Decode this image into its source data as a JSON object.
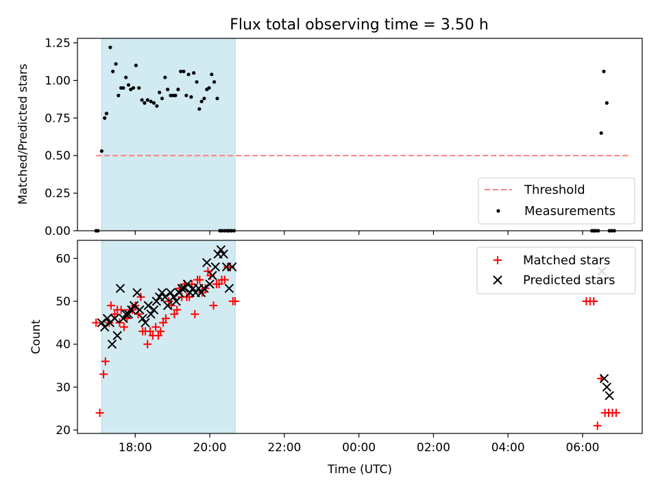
{
  "chart_data": {
    "title": "Flux total observing time = 3.50 h",
    "xlabel": "Time (UTC)",
    "x_tick_labels": [
      "18:00",
      "20:00",
      "22:00",
      "00:00",
      "02:00",
      "04:00",
      "06:00"
    ],
    "x_tick_hours": [
      18,
      20,
      22,
      24,
      26,
      28,
      30
    ],
    "xlim_hours": [
      16.45,
      31.6
    ],
    "shaded_interval_hours": [
      17.1,
      20.68
    ],
    "colors": {
      "shade": "#add8e6",
      "threshold": "#ff7f7f",
      "measurements": "#000000",
      "matched": "#ff0000",
      "predicted": "#000000"
    },
    "panels": [
      {
        "type": "scatter",
        "ylabel": "Matched/Predicted stars",
        "ylim": [
          0,
          1.28
        ],
        "yticks": [
          0,
          0.25,
          0.5,
          0.75,
          1.0,
          1.25
        ],
        "ytick_labels": [
          "0.00",
          "0.25",
          "0.50",
          "0.75",
          "1.00",
          "1.25"
        ],
        "legend": {
          "position": "lower-right",
          "entries": [
            "Threshold",
            "Measurements"
          ]
        },
        "threshold": {
          "name": "Threshold",
          "y": 0.5,
          "x_range_hours": [
            16.95,
            31.3
          ]
        },
        "measurements": {
          "name": "Measurements",
          "x": [
            16.95,
            17.0,
            17.1,
            17.18,
            17.23,
            17.33,
            17.4,
            17.48,
            17.55,
            17.62,
            17.68,
            17.75,
            17.82,
            17.88,
            17.95,
            18.02,
            18.1,
            18.18,
            18.25,
            18.33,
            18.42,
            18.5,
            18.58,
            18.65,
            18.72,
            18.8,
            18.87,
            18.95,
            19.02,
            19.08,
            19.15,
            19.22,
            19.3,
            19.37,
            19.43,
            19.5,
            19.57,
            19.65,
            19.72,
            19.78,
            19.85,
            19.92,
            19.98,
            20.05,
            20.12,
            20.2,
            20.27,
            20.33,
            20.4,
            20.47,
            20.52,
            20.58,
            20.65,
            30.25,
            30.3,
            30.35,
            30.42,
            30.5,
            30.57,
            30.65,
            30.72,
            30.78,
            30.85
          ],
          "y": [
            0.0,
            0.0,
            0.53,
            0.75,
            0.78,
            1.22,
            1.06,
            1.11,
            0.9,
            0.95,
            0.95,
            1.02,
            0.97,
            0.94,
            0.95,
            1.1,
            0.95,
            0.87,
            0.85,
            0.87,
            0.86,
            0.85,
            0.83,
            0.92,
            0.88,
            1.02,
            0.94,
            0.9,
            0.9,
            0.9,
            0.94,
            1.06,
            1.06,
            0.9,
            1.04,
            0.89,
            1.05,
            0.99,
            0.81,
            0.86,
            0.88,
            0.94,
            0.95,
            1.04,
            0.99,
            0.88,
            0.0,
            0.0,
            0.0,
            0.0,
            0.0,
            0.0,
            0.0,
            0.0,
            0.0,
            0.0,
            0.0,
            0.65,
            1.06,
            0.85,
            0.0,
            0.0,
            0.0
          ]
        }
      },
      {
        "type": "scatter",
        "ylabel": "Count",
        "ylim": [
          19.2,
          64.2
        ],
        "yticks": [
          20,
          30,
          40,
          50,
          60
        ],
        "ytick_labels": [
          "20",
          "30",
          "40",
          "50",
          "60"
        ],
        "legend": {
          "position": "top-right",
          "entries": [
            "Matched stars",
            "Predicted stars"
          ]
        },
        "matched": {
          "name": "Matched stars",
          "x": [
            16.95,
            17.05,
            17.15,
            17.2,
            17.3,
            17.35,
            17.45,
            17.52,
            17.58,
            17.62,
            17.7,
            17.78,
            17.85,
            17.92,
            18.0,
            18.08,
            18.15,
            18.2,
            18.27,
            18.33,
            18.4,
            18.47,
            18.55,
            18.62,
            18.68,
            18.75,
            18.82,
            18.9,
            18.97,
            19.05,
            19.12,
            19.18,
            19.25,
            19.32,
            19.38,
            19.45,
            19.52,
            19.6,
            19.67,
            19.73,
            19.8,
            19.88,
            19.95,
            20.02,
            20.1,
            20.18,
            20.25,
            20.32,
            20.4,
            20.48,
            20.55,
            20.62,
            20.68,
            30.1,
            30.2,
            30.3,
            30.4,
            30.5,
            30.6,
            30.7,
            30.8,
            30.9
          ],
          "y": [
            45,
            24,
            33,
            36,
            45,
            49,
            47,
            48,
            45,
            48,
            44,
            46,
            48,
            48,
            49,
            47,
            51,
            43,
            43,
            40,
            43,
            42,
            44,
            42,
            43,
            45,
            46,
            50,
            49,
            47,
            48,
            53,
            51,
            54,
            51,
            51,
            54,
            47,
            55,
            55,
            52,
            53,
            57,
            56,
            49,
            54,
            54,
            55,
            55,
            58,
            58,
            50,
            50,
            50,
            50,
            50,
            21,
            32,
            24,
            24,
            24,
            24
          ]
        },
        "predicted": {
          "name": "Predicted stars",
          "x": [
            17.1,
            17.18,
            17.25,
            17.32,
            17.38,
            17.45,
            17.52,
            17.6,
            17.68,
            17.75,
            17.82,
            17.9,
            17.97,
            18.05,
            18.12,
            18.2,
            18.27,
            18.35,
            18.42,
            18.5,
            18.57,
            18.65,
            18.72,
            18.8,
            18.87,
            18.95,
            19.03,
            19.1,
            19.18,
            19.25,
            19.32,
            19.4,
            19.47,
            19.55,
            19.62,
            19.7,
            19.77,
            19.85,
            19.92,
            20.0,
            20.07,
            20.15,
            20.22,
            20.3,
            20.37,
            20.45,
            20.52,
            20.6,
            30.52,
            30.58,
            30.65,
            30.72
          ],
          "y": [
            45,
            44,
            46,
            45,
            40,
            46,
            42,
            53,
            46,
            47,
            47,
            48,
            49,
            52,
            48,
            46,
            45,
            49,
            47,
            48,
            50,
            51,
            52,
            51,
            49,
            52,
            51,
            50,
            52,
            53,
            53,
            54,
            52,
            53,
            52,
            53,
            52,
            53,
            59,
            54,
            56,
            58,
            61,
            62,
            61,
            58,
            53,
            58,
            57,
            32,
            30,
            28
          ]
        }
      }
    ]
  }
}
